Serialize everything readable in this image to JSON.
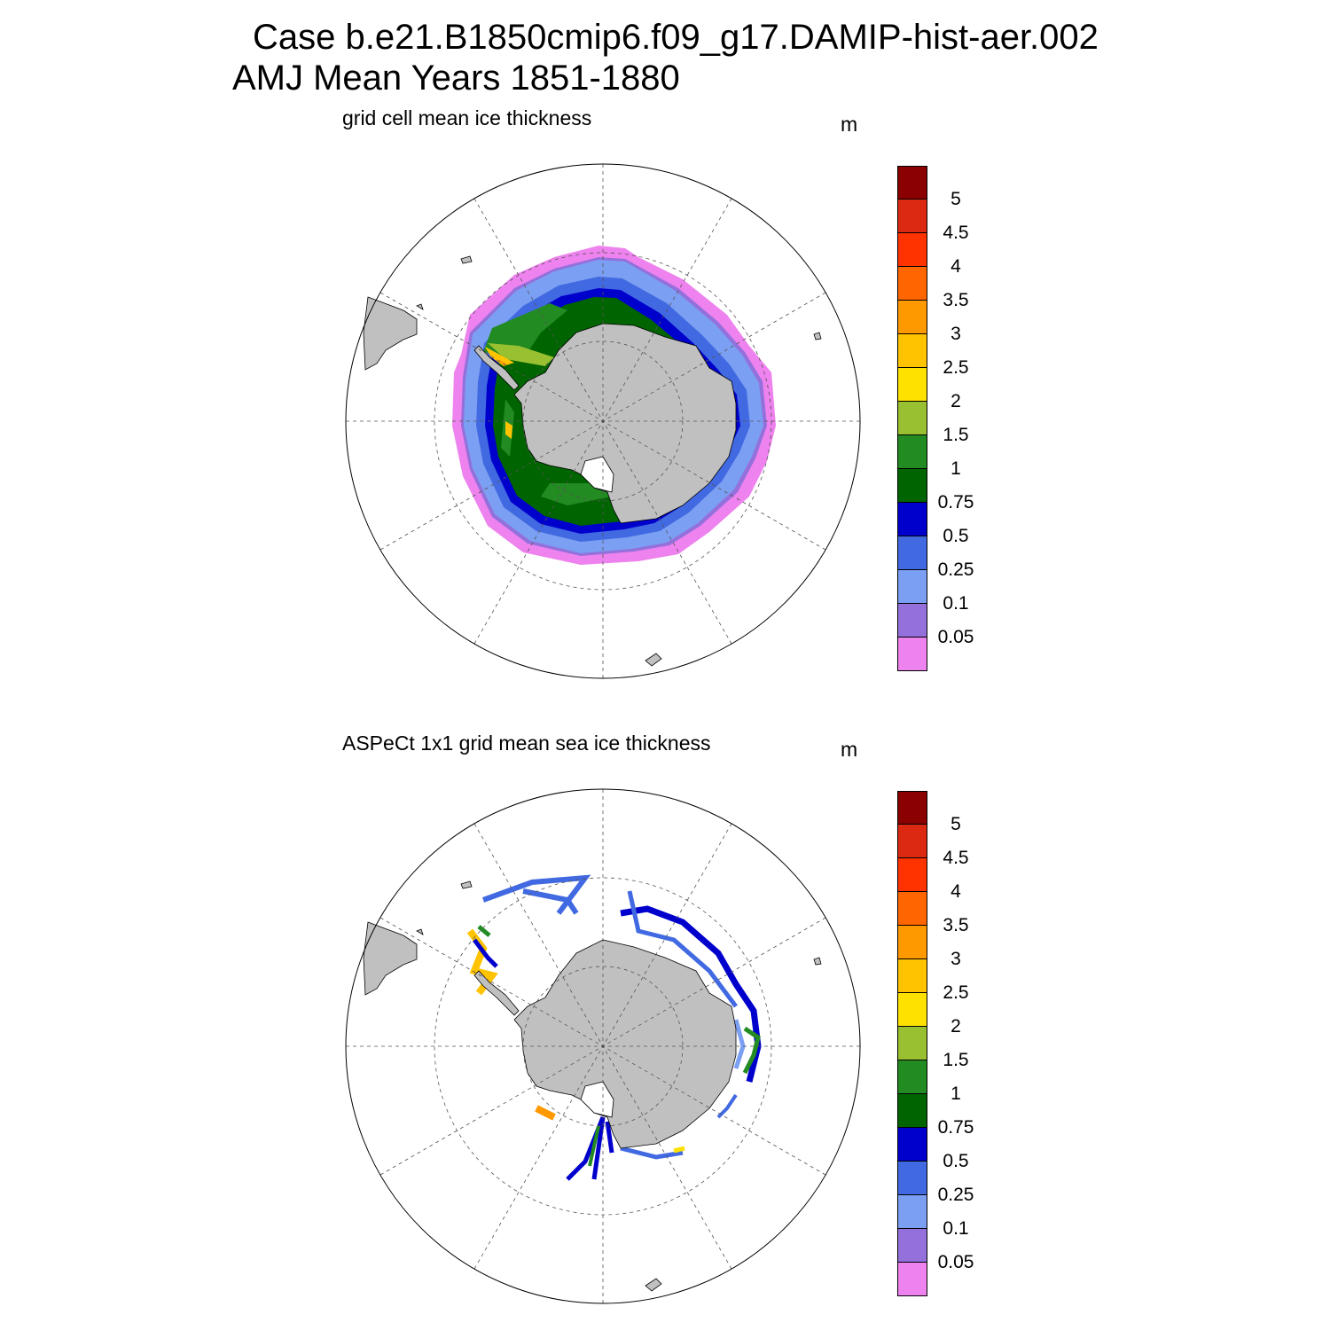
{
  "title": {
    "line1": "Case b.e21.B1850cmip6.f09_g17.DAMIP-hist-aer.002",
    "line2": "AMJ Mean   Years 1851-1880"
  },
  "panels": [
    {
      "subtitle": "grid cell mean ice thickness",
      "units": "m"
    },
    {
      "subtitle": "ASPeCt 1x1 grid mean sea ice thickness",
      "units": "m"
    }
  ],
  "colorbar": {
    "labels": [
      "5",
      "4.5",
      "4",
      "3.5",
      "3",
      "2.5",
      "2",
      "1.5",
      "1",
      "0.75",
      "0.5",
      "0.25",
      "0.1",
      "0.05"
    ],
    "colors": [
      "#8b0000",
      "#dc2a12",
      "#ff3300",
      "#ff6600",
      "#ff9900",
      "#ffc300",
      "#ffe100",
      "#99c030",
      "#228b22",
      "#006400",
      "#0000cd",
      "#4169e1",
      "#7b9ff2",
      "#9370db",
      "#ee82ee"
    ]
  },
  "map_colors": {
    "land": "#c0c0c0",
    "ocean": "#ffffff"
  }
}
